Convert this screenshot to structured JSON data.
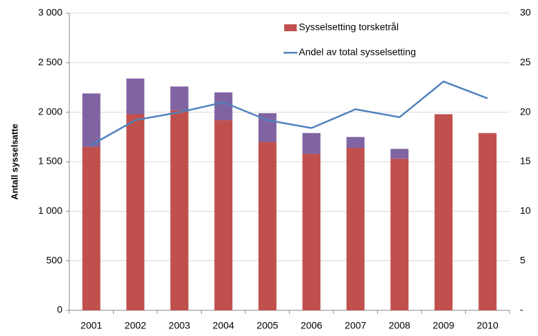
{
  "chart_data": {
    "type": "bar",
    "y_label": "Antall sysselsatte",
    "categories": [
      "2001",
      "2002",
      "2003",
      "2004",
      "2005",
      "2006",
      "2007",
      "2008",
      "2009",
      "2010"
    ],
    "series": [
      {
        "name": "Sysselsetting torsketrål",
        "color": "#c0504d",
        "type": "bar",
        "values": [
          1650,
          1980,
          2020,
          1920,
          1700,
          1580,
          1640,
          1530,
          1980,
          1790
        ]
      },
      {
        "color": "#8064a2",
        "type": "bar",
        "stacked": true,
        "values": [
          540,
          360,
          240,
          280,
          290,
          210,
          110,
          100,
          null,
          null
        ]
      },
      {
        "name": "Andel av total sysselsetting",
        "color": "#4f81bd",
        "type": "line",
        "axis": "y2",
        "values": [
          16.7,
          19.2,
          20.0,
          21.0,
          19.2,
          18.4,
          20.3,
          19.5,
          23.1,
          21.4
        ]
      }
    ],
    "ylim": [
      0,
      3000
    ],
    "yticks": [
      0,
      {
        "value": 500,
        "label": "500"
      },
      {
        "value": 1000,
        "label": "1 000"
      },
      {
        "value": 1500,
        "label": "1 500"
      },
      {
        "value": 2000,
        "label": "2 000"
      },
      {
        "value": 2500,
        "label": "2 500"
      },
      {
        "value": 3000,
        "label": "3 000"
      }
    ],
    "y2lim": [
      0,
      30
    ],
    "y2ticks": [
      {
        "value": 0,
        "label": "-"
      },
      5,
      10,
      15,
      20,
      25,
      30
    ],
    "grid": true
  }
}
